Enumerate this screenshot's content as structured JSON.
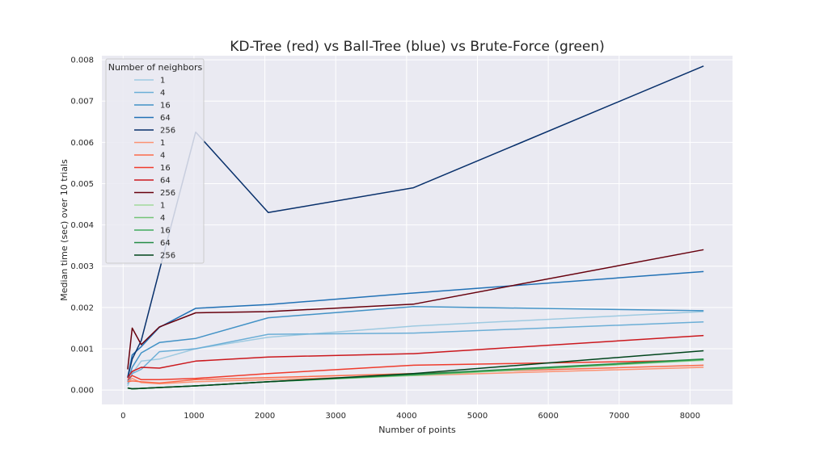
{
  "chart_data": {
    "type": "line",
    "title": "KD-Tree (red) vs Ball-Tree (blue) vs Brute-Force (green)",
    "xlabel": "Number of points",
    "ylabel": "Median time (sec) over 10 trials",
    "xlim": [
      -300,
      8600
    ],
    "ylim": [
      -0.00035,
      0.0081
    ],
    "xticks": [
      0,
      1000,
      2000,
      3000,
      4000,
      5000,
      6000,
      7000,
      8000
    ],
    "xtick_labels": [
      "0",
      "1000",
      "2000",
      "3000",
      "4000",
      "5000",
      "6000",
      "7000",
      "8000"
    ],
    "yticks": [
      0,
      0.001,
      0.002,
      0.003,
      0.004,
      0.005,
      0.006,
      0.007,
      0.008
    ],
    "ytick_labels": [
      "0.000",
      "0.001",
      "0.002",
      "0.003",
      "0.004",
      "0.005",
      "0.006",
      "0.007",
      "0.008"
    ],
    "grid": true,
    "background": "#eaeaf2",
    "legend": {
      "title": "Number of neighbors",
      "placement": "top-left"
    },
    "x": [
      64,
      128,
      256,
      512,
      1024,
      2048,
      4096,
      8192
    ],
    "series": [
      {
        "name": "1",
        "color": "#9ecae1",
        "values": [
          0.0001,
          0.0004,
          0.0007,
          0.00075,
          0.001,
          0.00128,
          0.00155,
          0.0019
        ]
      },
      {
        "name": "4",
        "color": "#6baed6",
        "values": [
          0.00015,
          0.0004,
          0.0005,
          0.00093,
          0.001,
          0.00135,
          0.00138,
          0.00165
        ]
      },
      {
        "name": "16",
        "color": "#4292c6",
        "values": [
          0.0002,
          0.00055,
          0.0009,
          0.00115,
          0.00125,
          0.00175,
          0.00202,
          0.00192
        ]
      },
      {
        "name": "64",
        "color": "#2171b5",
        "values": [
          0.0003,
          0.00085,
          0.00105,
          0.00152,
          0.00198,
          0.00207,
          0.00235,
          0.00287
        ]
      },
      {
        "name": "256",
        "color": "#08306b",
        "values": [
          0.0003,
          0.00075,
          0.0012,
          0.0029,
          0.00625,
          0.0043,
          0.0049,
          0.00785
        ]
      },
      {
        "name": "1",
        "color": "#fc9272",
        "values": [
          0.0002,
          0.00028,
          0.00018,
          0.00015,
          0.0002,
          0.00025,
          0.00035,
          0.00055
        ]
      },
      {
        "name": "4",
        "color": "#fb6a4a",
        "values": [
          0.0002,
          0.00022,
          0.0002,
          0.00017,
          0.00025,
          0.0003,
          0.0004,
          0.0006
        ]
      },
      {
        "name": "16",
        "color": "#ef3b2c",
        "values": [
          0.00025,
          0.00035,
          0.00025,
          0.00025,
          0.00028,
          0.0004,
          0.0006,
          0.00072
        ]
      },
      {
        "name": "64",
        "color": "#cb181d",
        "values": [
          0.0003,
          0.00045,
          0.00055,
          0.00053,
          0.0007,
          0.0008,
          0.00088,
          0.00132
        ]
      },
      {
        "name": "256",
        "color": "#67000d",
        "values": [
          0.0005,
          0.0015,
          0.0011,
          0.00153,
          0.00187,
          0.0019,
          0.00208,
          0.0034
        ]
      },
      {
        "name": "1",
        "color": "#a1d99b",
        "values": [
          5e-05,
          3e-05,
          4e-05,
          6e-05,
          0.0001,
          0.0002,
          0.00035,
          0.00072
        ]
      },
      {
        "name": "4",
        "color": "#74c476",
        "values": [
          5e-05,
          3e-05,
          4e-05,
          6e-05,
          0.0001,
          0.0002,
          0.00036,
          0.00073
        ]
      },
      {
        "name": "16",
        "color": "#41ab5d",
        "values": [
          5e-05,
          3e-05,
          4e-05,
          6e-05,
          0.0001,
          0.0002,
          0.00037,
          0.00074
        ]
      },
      {
        "name": "64",
        "color": "#238b45",
        "values": [
          5e-05,
          3e-05,
          4e-05,
          6e-05,
          0.0001,
          0.0002,
          0.00038,
          0.00075
        ]
      },
      {
        "name": "256",
        "color": "#00441b",
        "values": [
          5e-05,
          3e-05,
          4e-05,
          6e-05,
          0.0001,
          0.0002,
          0.0004,
          0.00095
        ]
      }
    ]
  }
}
